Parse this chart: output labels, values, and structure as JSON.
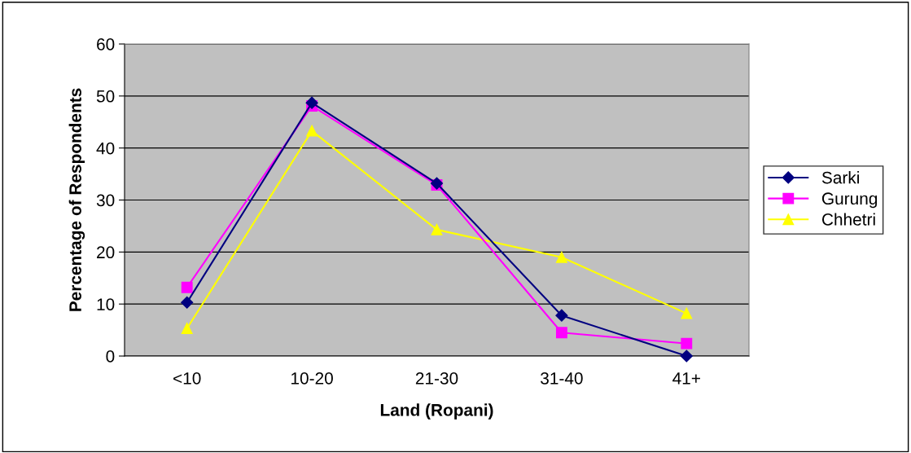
{
  "chart_data": {
    "type": "line",
    "xlabel": "Land (Ropani)",
    "ylabel": "Percentage of Respondents",
    "categories": [
      "<10",
      "10-20",
      "21-30",
      "31-40",
      "41+"
    ],
    "series": [
      {
        "name": "Sarki",
        "color": "#000080",
        "marker": "diamond",
        "values": [
          10.3,
          48.7,
          33.2,
          7.8,
          0
        ]
      },
      {
        "name": "Gurung",
        "color": "#ff00ff",
        "marker": "square",
        "values": [
          13.2,
          48.1,
          32.9,
          4.5,
          2.4
        ]
      },
      {
        "name": "Chhetri",
        "color": "#ffff00",
        "marker": "triangle",
        "values": [
          5.3,
          43.3,
          24.3,
          19.0,
          8.2
        ]
      }
    ],
    "ylim": [
      0,
      60
    ],
    "yticks": [
      0,
      10,
      20,
      30,
      40,
      50,
      60
    ],
    "grid": "y",
    "legend": "right",
    "line_style": "solid"
  }
}
